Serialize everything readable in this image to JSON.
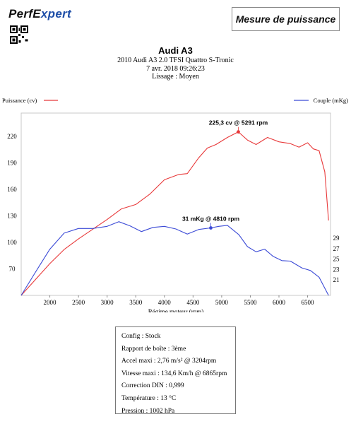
{
  "brand": {
    "logo_part1": "PerfE",
    "logo_part2": "xpert"
  },
  "report_title": "Mesure de puissance",
  "vehicle": {
    "name": "Audi A3",
    "model": "2010 Audi A3 2.0 TFSI Quattro S-Tronic",
    "date": "7 avr. 2018 09:26:23",
    "smoothing": "Lissage : Moyen"
  },
  "colors": {
    "power": "#e8393a",
    "torque": "#3b4ad6"
  },
  "chart_data": {
    "type": "line",
    "xlabel": "Régime moteur (rpm)",
    "x_ticks": [
      2000,
      2500,
      3000,
      3500,
      4000,
      4500,
      5000,
      5500,
      6000,
      6500
    ],
    "xlim": [
      1500,
      6900
    ],
    "left_axis": {
      "label": "Puissance (cv)",
      "ticks": [
        70,
        100,
        130,
        160,
        190,
        220
      ],
      "ylim": [
        40,
        237
      ]
    },
    "right_axis": {
      "label": "Couple (mKg)",
      "ticks": [
        21,
        23,
        25,
        27,
        29
      ],
      "ylim": [
        18,
        51.5
      ]
    },
    "grid": false,
    "legend": [
      "top-left",
      "top-right"
    ],
    "series": [
      {
        "name": "Puissance (cv)",
        "axis": "left",
        "color": "#e8393a",
        "x": [
          1500,
          1750,
          2000,
          2250,
          2500,
          2750,
          3000,
          3250,
          3500,
          3750,
          4000,
          4250,
          4400,
          4600,
          4750,
          4900,
          5100,
          5291,
          5450,
          5600,
          5800,
          6000,
          6200,
          6350,
          6500,
          6600,
          6700,
          6800,
          6865
        ],
        "y": [
          40,
          58,
          76,
          92,
          104,
          115,
          126,
          138,
          143,
          155,
          171,
          177,
          178,
          196,
          207,
          211,
          219,
          225.3,
          216,
          211,
          219,
          214,
          212,
          208,
          213,
          206,
          204,
          180,
          125
        ]
      },
      {
        "name": "Couple (mKg)",
        "axis": "right",
        "color": "#3b4ad6",
        "x": [
          1500,
          1750,
          2000,
          2250,
          2500,
          2750,
          3000,
          3204,
          3400,
          3600,
          3800,
          4000,
          4200,
          4400,
          4600,
          4810,
          4950,
          5100,
          5300,
          5450,
          5600,
          5750,
          5900,
          6050,
          6200,
          6400,
          6550,
          6700,
          6865
        ],
        "y": [
          18,
          22.5,
          26.9,
          30,
          30.9,
          30.9,
          31.3,
          32.2,
          31.4,
          30.3,
          31.1,
          31.3,
          30.8,
          29.8,
          30.7,
          31.0,
          31.3,
          31.5,
          29.7,
          27.4,
          26.4,
          26.9,
          25.5,
          24.7,
          24.6,
          23.3,
          22.8,
          21.5,
          18
        ]
      }
    ],
    "annotations": [
      {
        "series": "Puissance (cv)",
        "x": 5291,
        "y": 225.3,
        "label": "225,3 cv @ 5291 rpm"
      },
      {
        "series": "Couple (mKg)",
        "x": 4810,
        "y": 31.0,
        "label": "31 mKg @ 4810 rpm"
      }
    ]
  },
  "info": [
    "Config : Stock",
    "Rapport de boîte : 3ème",
    "Accel maxi : 2,76 m/s² @ 3204rpm",
    "Vitesse maxi : 134,6 Km/h @ 6865rpm",
    "Correction DIN : 0,999",
    "Température : 13 °C",
    "Pression : 1002 hPa"
  ]
}
